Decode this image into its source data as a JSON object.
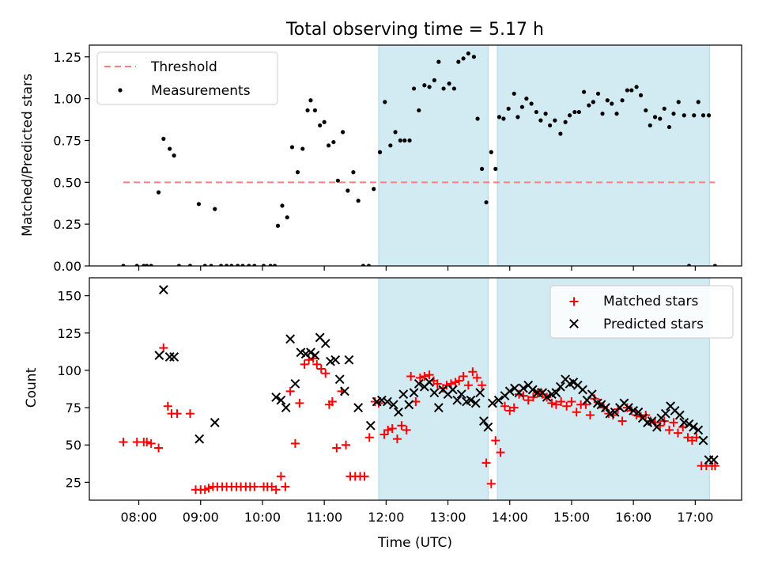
{
  "title": "Total observing time = 5.17 h",
  "xlabel": "Time (UTC)",
  "x_ticks": [
    "08:00",
    "09:00",
    "10:00",
    "11:00",
    "12:00",
    "13:00",
    "14:00",
    "15:00",
    "16:00",
    "17:00"
  ],
  "x_tick_hours": [
    8,
    9,
    10,
    11,
    12,
    13,
    14,
    15,
    16,
    17
  ],
  "xlim_hours": [
    7.2,
    17.75
  ],
  "highlight_windows_hours": [
    [
      11.88,
      13.65
    ],
    [
      13.8,
      17.23
    ]
  ],
  "colors": {
    "highlight": "#add8e6",
    "threshold": "#ff7f7f",
    "measurements": "#000000",
    "matched": "#ff0000",
    "predicted": "#000000"
  },
  "chart_data": [
    {
      "type": "scatter",
      "ylabel": "Matched/Predicted stars",
      "ylim": [
        0,
        1.32
      ],
      "y_ticks": [
        "0.00",
        "0.25",
        "0.50",
        "0.75",
        "1.00",
        "1.25"
      ],
      "threshold": {
        "name": "Threshold",
        "value": 0.5,
        "x_range_hours": [
          7.75,
          17.32
        ]
      },
      "legend": {
        "placement": "upper-left",
        "entries": [
          "Threshold",
          "Measurements"
        ]
      },
      "series": [
        {
          "name": "Measurements",
          "marker": "dot",
          "x_hours": [
            7.75,
            7.97,
            8.08,
            8.13,
            8.2,
            8.32,
            8.4,
            8.5,
            8.57,
            8.65,
            8.83,
            8.97,
            9.07,
            9.17,
            9.23,
            9.33,
            9.42,
            9.5,
            9.6,
            9.68,
            9.78,
            9.87,
            10.02,
            10.13,
            10.2,
            10.25,
            10.32,
            10.4,
            10.48,
            10.57,
            10.65,
            10.73,
            10.78,
            10.85,
            10.93,
            11.0,
            11.07,
            11.15,
            11.22,
            11.3,
            11.38,
            11.47,
            11.55,
            11.63,
            11.72,
            11.8,
            11.9,
            11.98,
            12.07,
            12.15,
            12.23,
            12.3,
            12.38,
            12.45,
            12.53,
            12.62,
            12.7,
            12.78,
            12.85,
            12.93,
            13.02,
            13.1,
            13.17,
            13.25,
            13.33,
            13.42,
            13.48,
            13.55,
            13.62,
            13.7,
            13.77,
            13.83,
            13.9,
            13.98,
            14.07,
            14.13,
            14.2,
            14.27,
            14.35,
            14.43,
            14.5,
            14.58,
            14.65,
            14.73,
            14.82,
            14.9,
            14.97,
            15.05,
            15.12,
            15.2,
            15.28,
            15.35,
            15.43,
            15.5,
            15.58,
            15.65,
            15.73,
            15.82,
            15.9,
            15.97,
            16.05,
            16.12,
            16.2,
            16.27,
            16.35,
            16.43,
            16.5,
            16.58,
            16.65,
            16.73,
            16.82,
            16.9,
            16.98,
            17.05,
            17.13,
            17.22,
            17.32
          ],
          "y": [
            0.0,
            0.0,
            0.0,
            0.0,
            0.0,
            0.44,
            0.76,
            0.7,
            0.66,
            0.0,
            0.0,
            0.37,
            0.0,
            0.0,
            0.34,
            0.0,
            0.0,
            0.0,
            0.0,
            0.0,
            0.0,
            0.0,
            0.0,
            0.0,
            0.0,
            0.24,
            0.36,
            0.29,
            0.71,
            0.56,
            0.7,
            0.93,
            0.99,
            0.93,
            0.84,
            0.86,
            0.72,
            0.74,
            0.51,
            0.8,
            0.45,
            0.56,
            0.39,
            0.0,
            0.0,
            0.46,
            0.68,
            0.98,
            0.72,
            0.8,
            0.75,
            0.75,
            0.75,
            1.06,
            0.93,
            1.08,
            1.07,
            1.11,
            1.22,
            1.06,
            1.09,
            1.06,
            1.22,
            1.24,
            1.27,
            1.25,
            0.88,
            0.58,
            0.38,
            0.68,
            0.58,
            0.89,
            0.88,
            0.94,
            1.03,
            0.89,
            0.95,
            1.0,
            0.97,
            0.92,
            0.87,
            0.91,
            0.84,
            0.87,
            0.79,
            0.86,
            0.9,
            0.92,
            0.92,
            1.04,
            0.96,
            0.98,
            1.03,
            0.91,
            0.99,
            0.97,
            0.91,
            0.99,
            1.05,
            1.05,
            1.07,
            1.02,
            0.93,
            0.84,
            0.89,
            0.88,
            0.94,
            0.83,
            0.91,
            0.98,
            0.9,
            0.0,
            0.9,
            0.98,
            0.9,
            0.9,
            0.0
          ]
        }
      ]
    },
    {
      "type": "scatter",
      "ylabel": "Count",
      "ylim": [
        13,
        162
      ],
      "y_ticks": [
        "25",
        "50",
        "75",
        "100",
        "125",
        "150"
      ],
      "legend": {
        "placement": "upper-right",
        "entries": [
          "Matched stars",
          "Predicted stars"
        ]
      },
      "series": [
        {
          "name": "Matched stars",
          "marker": "plus",
          "x_hours": [
            7.75,
            7.97,
            8.08,
            8.13,
            8.2,
            8.32,
            8.4,
            8.47,
            8.53,
            8.62,
            8.83,
            8.92,
            9.0,
            9.07,
            9.13,
            9.2,
            9.27,
            9.35,
            9.42,
            9.5,
            9.58,
            9.65,
            9.73,
            9.8,
            9.87,
            10.02,
            10.08,
            10.15,
            10.22,
            10.3,
            10.37,
            10.45,
            10.53,
            10.6,
            10.68,
            10.75,
            10.82,
            10.88,
            10.95,
            11.02,
            11.08,
            11.13,
            11.2,
            11.28,
            11.35,
            11.42,
            11.5,
            11.58,
            11.65,
            11.73,
            11.82,
            11.88,
            11.97,
            12.03,
            12.1,
            12.18,
            12.25,
            12.33,
            12.4,
            12.48,
            12.55,
            12.62,
            12.7,
            12.77,
            12.83,
            12.92,
            12.98,
            13.05,
            13.12,
            13.18,
            13.25,
            13.33,
            13.4,
            13.47,
            13.55,
            13.62,
            13.7,
            13.77,
            13.85,
            13.92,
            14.0,
            14.07,
            14.15,
            14.22,
            14.3,
            14.38,
            14.45,
            14.53,
            14.6,
            14.68,
            14.75,
            14.83,
            14.92,
            15.0,
            15.08,
            15.15,
            15.23,
            15.3,
            15.37,
            15.45,
            15.52,
            15.6,
            15.67,
            15.75,
            15.82,
            15.9,
            15.97,
            16.05,
            16.12,
            16.2,
            16.28,
            16.35,
            16.43,
            16.5,
            16.58,
            16.65,
            16.72,
            16.8,
            16.88,
            16.95,
            17.02,
            17.1,
            17.18,
            17.27,
            17.32
          ],
          "y": [
            52,
            52,
            52,
            52,
            51,
            48,
            115,
            76,
            71,
            71,
            71,
            20,
            20,
            20,
            21,
            22,
            22,
            22,
            22,
            22,
            22,
            22,
            22,
            22,
            22,
            22,
            22,
            22,
            20,
            29,
            22,
            86,
            51,
            78,
            104,
            107,
            108,
            104,
            101,
            98,
            77,
            79,
            48,
            86,
            50,
            29,
            29,
            29,
            29,
            55,
            79,
            78,
            57,
            60,
            61,
            54,
            63,
            60,
            96,
            79,
            95,
            96,
            97,
            93,
            91,
            88,
            90,
            91,
            92,
            93,
            96,
            90,
            99,
            95,
            90,
            38,
            24,
            53,
            45,
            76,
            73,
            75,
            84,
            83,
            80,
            82,
            85,
            84,
            82,
            78,
            77,
            79,
            76,
            79,
            72,
            77,
            77,
            70,
            81,
            78,
            75,
            71,
            70,
            74,
            66,
            75,
            73,
            70,
            69,
            70,
            66,
            65,
            63,
            66,
            60,
            65,
            58,
            62,
            55,
            53,
            55,
            36,
            36,
            36,
            36
          ],
          "color": "#ff0000"
        },
        {
          "name": "Predicted stars",
          "marker": "x",
          "x_hours": [
            8.33,
            8.4,
            8.5,
            8.57,
            8.98,
            9.23,
            10.22,
            10.3,
            10.38,
            10.45,
            10.53,
            10.62,
            10.7,
            10.78,
            10.85,
            10.93,
            11.02,
            11.1,
            11.18,
            11.25,
            11.33,
            11.4,
            11.55,
            11.75,
            11.85,
            11.93,
            12.02,
            12.12,
            12.2,
            12.28,
            12.37,
            12.45,
            12.53,
            12.62,
            12.7,
            12.78,
            12.85,
            12.92,
            13.0,
            13.08,
            13.15,
            13.22,
            13.3,
            13.37,
            13.45,
            13.52,
            13.58,
            13.65,
            13.72,
            13.82,
            13.92,
            14.0,
            14.08,
            14.15,
            14.22,
            14.3,
            14.37,
            14.45,
            14.53,
            14.6,
            14.68,
            14.75,
            14.82,
            14.9,
            14.97,
            15.03,
            15.1,
            15.18,
            15.25,
            15.33,
            15.42,
            15.48,
            15.55,
            15.62,
            15.7,
            15.78,
            15.85,
            15.92,
            16.0,
            16.08,
            16.15,
            16.23,
            16.3,
            16.38,
            16.45,
            16.52,
            16.6,
            16.67,
            16.75,
            16.82,
            16.9,
            16.97,
            17.05,
            17.13,
            17.22,
            17.3
          ],
          "y": [
            110,
            154,
            109,
            109,
            54,
            65,
            82,
            80,
            75,
            121,
            91,
            112,
            111,
            112,
            110,
            122,
            118,
            106,
            107,
            94,
            86,
            107,
            75,
            63,
            79,
            80,
            79,
            77,
            72,
            84,
            77,
            85,
            91,
            89,
            92,
            85,
            75,
            87,
            84,
            87,
            80,
            84,
            79,
            80,
            78,
            85,
            66,
            62,
            78,
            80,
            83,
            86,
            88,
            85,
            88,
            90,
            87,
            85,
            85,
            82,
            84,
            85,
            89,
            94,
            91,
            92,
            90,
            87,
            80,
            84,
            78,
            77,
            75,
            71,
            72,
            75,
            78,
            75,
            73,
            72,
            68,
            65,
            66,
            62,
            68,
            71,
            76,
            73,
            70,
            65,
            64,
            62,
            60,
            53,
            40,
            40
          ],
          "color": "#000000"
        }
      ]
    }
  ]
}
